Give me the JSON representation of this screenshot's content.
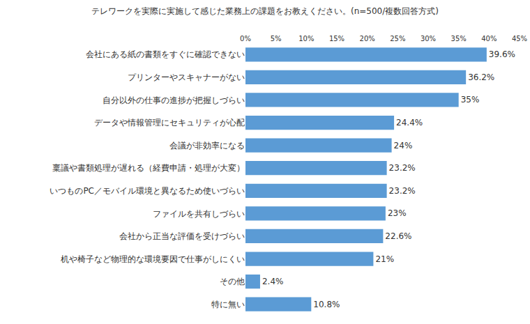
{
  "chart_data": {
    "type": "bar",
    "orientation": "horizontal",
    "title": "テレワークを実際に実施して感じた業務上の課題をお教えください。(n=500/複数回答方式)",
    "categories": [
      "会社にある紙の書類をすぐに確認できない",
      "プリンターやスキャナーがない",
      "自分以外の仕事の進捗が把握しづらい",
      "データや情報管理にセキュリティが心配",
      "会議が非効率になる",
      "稟議や書類処理が遅れる（経費申請・処理が大変）",
      "いつものPC／モバイル環境と異なるため使いづらい",
      "ファイルを共有しづらい",
      "会社から正当な評価を受けづらい",
      "机や椅子など物理的な環境要因で仕事がしにくい",
      "その他",
      "特に無い"
    ],
    "values": [
      39.6,
      36.2,
      35,
      24.4,
      24,
      23.2,
      23.2,
      23,
      22.6,
      21,
      2.4,
      10.8
    ],
    "value_labels": [
      "39.6%",
      "36.2%",
      "35%",
      "24.4%",
      "24%",
      "23.2%",
      "23.2%",
      "23%",
      "22.6%",
      "21%",
      "2.4%",
      "10.8%"
    ],
    "data_labels": true,
    "color": "#5b9bd5",
    "xlim": [
      0,
      45
    ],
    "xticks": [
      {
        "value": 0,
        "label": "0%"
      },
      {
        "value": 5,
        "label": "5%"
      },
      {
        "value": 10,
        "label": "10%"
      },
      {
        "value": 15,
        "label": "15%"
      },
      {
        "value": 20,
        "label": "20%"
      },
      {
        "value": 25,
        "label": "25%"
      },
      {
        "value": 30,
        "label": "30%"
      },
      {
        "value": 35,
        "label": "35%"
      },
      {
        "value": 40,
        "label": "40%"
      },
      {
        "value": 45,
        "label": "45%"
      }
    ],
    "grid": false
  }
}
